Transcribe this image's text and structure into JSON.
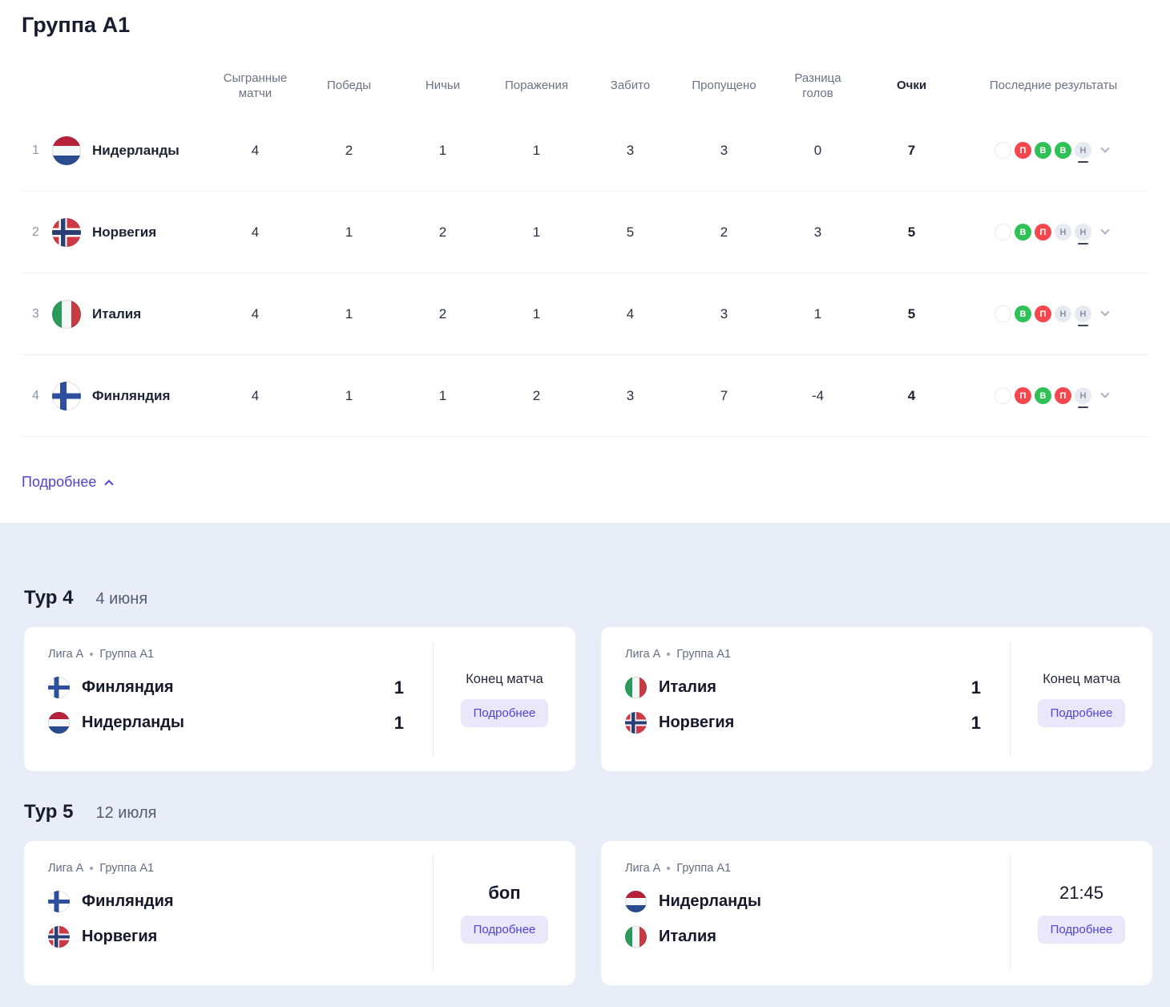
{
  "colors": {
    "accent": "#4f43d8",
    "accent_bg": "#eae7fb",
    "win": "#2fc156",
    "loss": "#f4474e",
    "draw_bg": "#e7eaf0",
    "draw_text": "#8a93a6",
    "section_bg": "#e9edf8",
    "underline": "#3c4354"
  },
  "group": {
    "title": "Группа A1"
  },
  "table": {
    "headers": {
      "played": "Сыгранные матчи",
      "wins": "Победы",
      "draws": "Ничьи",
      "losses": "Поражения",
      "scored": "Забито",
      "conceded": "Пропущено",
      "diff": "Разница голов",
      "points": "Очки",
      "recent": "Последние результаты"
    },
    "rows": [
      {
        "rank": "1",
        "team": "Нидерланды",
        "flag": "nl",
        "played": "4",
        "wins": "2",
        "draws": "1",
        "losses": "1",
        "scored": "3",
        "conceded": "3",
        "diff": "0",
        "points": "7",
        "results": [
          {
            "label": "П",
            "type": "loss"
          },
          {
            "label": "В",
            "type": "win"
          },
          {
            "label": "В",
            "type": "win"
          },
          {
            "label": "Н",
            "type": "draw"
          }
        ]
      },
      {
        "rank": "2",
        "team": "Норвегия",
        "flag": "no",
        "played": "4",
        "wins": "1",
        "draws": "2",
        "losses": "1",
        "scored": "5",
        "conceded": "2",
        "diff": "3",
        "points": "5",
        "results": [
          {
            "label": "В",
            "type": "win"
          },
          {
            "label": "П",
            "type": "loss"
          },
          {
            "label": "Н",
            "type": "draw"
          },
          {
            "label": "Н",
            "type": "draw"
          }
        ]
      },
      {
        "rank": "3",
        "team": "Италия",
        "flag": "it",
        "played": "4",
        "wins": "1",
        "draws": "2",
        "losses": "1",
        "scored": "4",
        "conceded": "3",
        "diff": "1",
        "points": "5",
        "results": [
          {
            "label": "В",
            "type": "win"
          },
          {
            "label": "П",
            "type": "loss"
          },
          {
            "label": "Н",
            "type": "draw"
          },
          {
            "label": "Н",
            "type": "draw"
          }
        ]
      },
      {
        "rank": "4",
        "team": "Финляндия",
        "flag": "fi",
        "played": "4",
        "wins": "1",
        "draws": "1",
        "losses": "2",
        "scored": "3",
        "conceded": "7",
        "diff": "-4",
        "points": "4",
        "results": [
          {
            "label": "П",
            "type": "loss"
          },
          {
            "label": "В",
            "type": "win"
          },
          {
            "label": "П",
            "type": "loss"
          },
          {
            "label": "Н",
            "type": "draw"
          }
        ]
      }
    ]
  },
  "details_toggle": {
    "label": "Подробнее"
  },
  "fixtures": {
    "separator": "•",
    "rounds": [
      {
        "title": "Тур 4",
        "date": "4 июня",
        "matches": [
          {
            "league": "Лига A",
            "group": "Группа A1",
            "home": {
              "name": "Финляндия",
              "flag": "fi",
              "score": "1"
            },
            "away": {
              "name": "Нидерланды",
              "flag": "nl",
              "score": "1"
            },
            "status": "Конец матча",
            "details_label": "Подробнее"
          },
          {
            "league": "Лига A",
            "group": "Группа A1",
            "home": {
              "name": "Италия",
              "flag": "it",
              "score": "1"
            },
            "away": {
              "name": "Норвегия",
              "flag": "no",
              "score": "1"
            },
            "status": "Конец матча",
            "details_label": "Подробнее"
          }
        ]
      },
      {
        "title": "Тур 5",
        "date": "12 июля",
        "matches": [
          {
            "league": "Лига A",
            "group": "Группа A1",
            "home": {
              "name": "Финляндия",
              "flag": "fi"
            },
            "away": {
              "name": "Норвегия",
              "flag": "no"
            },
            "status": "боп",
            "details_label": "Подробнее"
          },
          {
            "league": "Лига A",
            "group": "Группа A1",
            "home": {
              "name": "Нидерланды",
              "flag": "nl"
            },
            "away": {
              "name": "Италия",
              "flag": "it"
            },
            "status": "21:45",
            "details_label": "Подробнее"
          }
        ]
      }
    ]
  }
}
